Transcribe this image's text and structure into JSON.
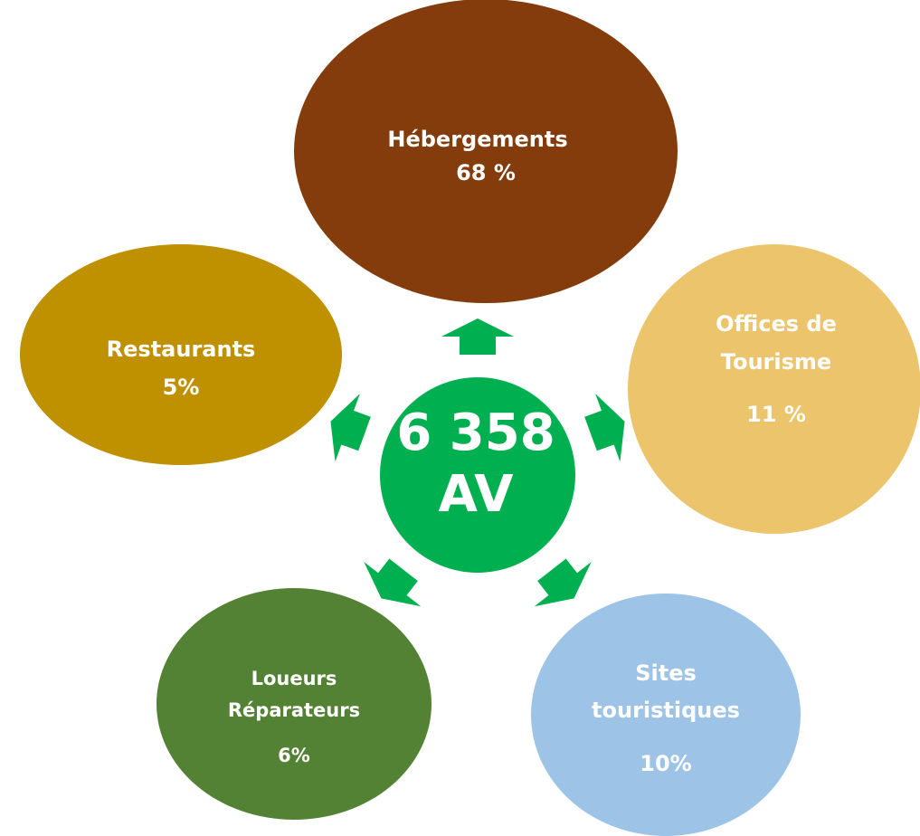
{
  "center": {
    "lines": [
      "6 358",
      "AV"
    ]
  },
  "nodes": [
    {
      "lines": [
        "Hébergements",
        "68 %"
      ]
    },
    {
      "lines": [
        "Offices de",
        "Tourisme",
        "11 %"
      ]
    },
    {
      "lines": [
        "Sites",
        "touristiques",
        "10%"
      ]
    },
    {
      "lines": [
        "Loueurs",
        "Réparateurs",
        "6%"
      ]
    },
    {
      "lines": [
        "Restaurants",
        "5%"
      ]
    }
  ]
}
